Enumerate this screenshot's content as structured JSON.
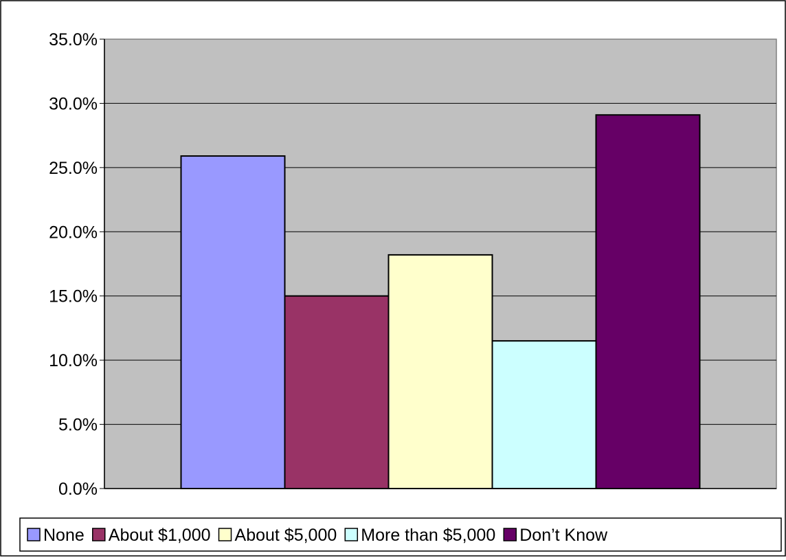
{
  "chart_data": {
    "type": "bar",
    "title": "",
    "xlabel": "",
    "ylabel": "",
    "categories": [
      ""
    ],
    "series": [
      {
        "name": "None",
        "values": [
          25.9
        ],
        "color": "#9999FF"
      },
      {
        "name": "About $1,000",
        "values": [
          15.0
        ],
        "color": "#993366"
      },
      {
        "name": "About $5,000",
        "values": [
          18.2
        ],
        "color": "#FFFFCC"
      },
      {
        "name": "More than $5,000",
        "values": [
          11.5
        ],
        "color": "#CCFFFF"
      },
      {
        "name": "Don’t Know",
        "values": [
          29.1
        ],
        "color": "#660066"
      }
    ],
    "ylim": [
      0,
      35
    ],
    "yticks": [
      "0.0%",
      "5.0%",
      "10.0%",
      "15.0%",
      "20.0%",
      "25.0%",
      "30.0%",
      "35.0%"
    ],
    "ytick_values": [
      0,
      5,
      10,
      15,
      20,
      25,
      30,
      35
    ],
    "grid": true,
    "legend_position": "bottom",
    "plot_background": "#C0C0C0"
  }
}
